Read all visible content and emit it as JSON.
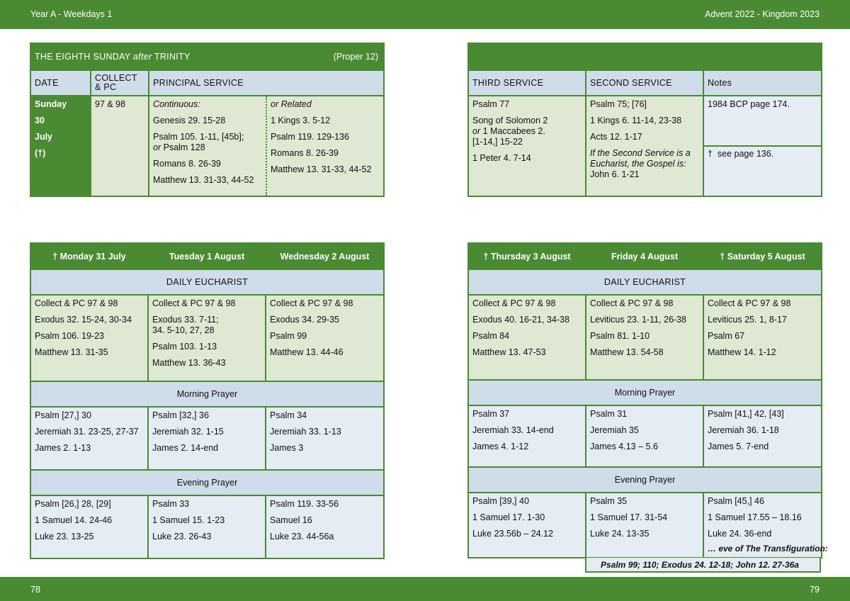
{
  "header": {
    "left": "Year A - Weekdays 1",
    "right": "Advent  2022 - Kingdom 2023"
  },
  "footer": {
    "left_page": "78",
    "right_page": "79"
  },
  "sunday_table": {
    "title": "THE EIGHTH SUNDAY",
    "title_italic": "after",
    "title_end": "TRINITY",
    "proper": "(Proper 12)",
    "col_date": "DATE",
    "col_collect_1": "COLLECT",
    "col_collect_2": "& PC",
    "col_principal": "PRINCIPAL SERVICE",
    "date_lines": [
      "Sunday",
      "30",
      "July",
      "(†)"
    ],
    "collect": "97 & 98",
    "continuous_heading": "Continuous:",
    "continuous": [
      "Genesis 29. 15-28",
      "Psalm 105. 1-11, [45b];",
      "Romans 8. 26-39",
      "Matthew 13. 31-33, 44-52"
    ],
    "continuous_or": "or",
    "continuous_or_rest": "Psalm 128",
    "related_heading": "or Related",
    "related": [
      "1 Kings 3. 5-12",
      "Psalm 119. 129-136",
      "Romans 8. 26-39",
      "Matthew 13. 31-33, 44-52"
    ]
  },
  "services_table": {
    "col_third": "THIRD SERVICE",
    "col_second": "SECOND SERVICE",
    "col_notes": "Notes",
    "third": [
      "Psalm 77",
      "Song of Solomon 2",
      "1 Maccabees 2.",
      "[1-14,] 15-22",
      "1 Peter 4. 7-14"
    ],
    "third_or": "or",
    "second": [
      "Psalm 75; [76]",
      "1 Kings 6. 11-14, 23-38",
      "Acts 12. 1-17"
    ],
    "second_note": [
      "If the Second Service is a",
      "Eucharist, the Gospel is:"
    ],
    "second_gospel": "John 6. 1-21",
    "notes_1": "1984 BCP page 174.",
    "notes_2_dagger": "†",
    "notes_2": "see page 136."
  },
  "week_left": {
    "days": [
      "†  Monday 31 July",
      "Tuesday 1 August",
      "Wednesday 2 August"
    ],
    "eucharist_label": "DAILY EUCHARIST",
    "eucharist": [
      [
        "Collect & PC 97 & 98",
        "Exodus 32. 15-24, 30-34",
        "Psalm 106. 19-23",
        "Matthew 13. 31-35"
      ],
      [
        "Collect & PC 97 & 98",
        "Exodus 33. 7-11;",
        "34. 5-10, 27, 28",
        "Psalm 103. 1-13",
        "Matthew 13. 36-43"
      ],
      [
        "Collect & PC 97 & 98",
        "Exodus 34. 29-35",
        "Psalm 99",
        "Matthew 13. 44-46"
      ]
    ],
    "morning_label": "Morning Prayer",
    "morning": [
      [
        "Psalm [27,] 30",
        "Jeremiah 31. 23-25, 27-37",
        "James 2. 1-13"
      ],
      [
        "Psalm [32,] 36",
        "Jeremiah 32. 1-15",
        "James 2. 14-end"
      ],
      [
        "Psalm 34",
        "Jeremiah 33. 1-13",
        "James 3"
      ]
    ],
    "evening_label": "Evening Prayer",
    "evening": [
      [
        "Psalm [26,] 28, [29]",
        "1 Samuel 14. 24-46",
        "Luke 23. 13-25"
      ],
      [
        "Psalm 33",
        "1 Samuel 15. 1-23",
        "Luke 23. 26-43"
      ],
      [
        "Psalm 119. 33-56",
        "Samuel 16",
        "Luke 23. 44-56a"
      ]
    ]
  },
  "week_right": {
    "days": [
      "†  Thursday 3 August",
      "Friday 4 August",
      "†  Saturday 5 August"
    ],
    "eucharist_label": "DAILY EUCHARIST",
    "eucharist": [
      [
        "Collect & PC 97 & 98",
        "Exodus 40. 16-21, 34-38",
        "Psalm 84",
        "Matthew 13. 47-53"
      ],
      [
        "Collect & PC 97 & 98",
        "Leviticus 23. 1-11, 26-38",
        "Psalm 81. 1-10",
        "Matthew 13. 54-58"
      ],
      [
        "Collect & PC 97 & 98",
        "Leviticus 25. 1, 8-17",
        "Psalm 67",
        "Matthew 14. 1-12"
      ]
    ],
    "morning_label": "Morning Prayer",
    "morning": [
      [
        "Psalm 37",
        "Jeremiah 33. 14-end",
        "James 4. 1-12"
      ],
      [
        "Psalm 31",
        "Jeremiah 35",
        "James 4.13 – 5.6"
      ],
      [
        "Psalm [41,] 42, [43]",
        "Jeremiah 36. 1-18",
        "James 5. 7-end"
      ]
    ],
    "evening_label": "Evening Prayer",
    "evening": [
      [
        "Psalm [39,] 40",
        "1 Samuel 17. 1-30",
        "Luke 23.56b – 24.12"
      ],
      [
        "Psalm 35",
        "1 Samuel 17. 31-54",
        "Luke 24. 13-35"
      ],
      [
        "Psalm [45,] 46",
        "1 Samuel 17.55 – 18.16",
        "Luke 24. 36-end"
      ]
    ],
    "eve_label": "… eve of The Transfiguration:",
    "eve_readings": "Psalm 99; 110;  Exodus 24. 12-18;  John 12. 27-36a"
  }
}
